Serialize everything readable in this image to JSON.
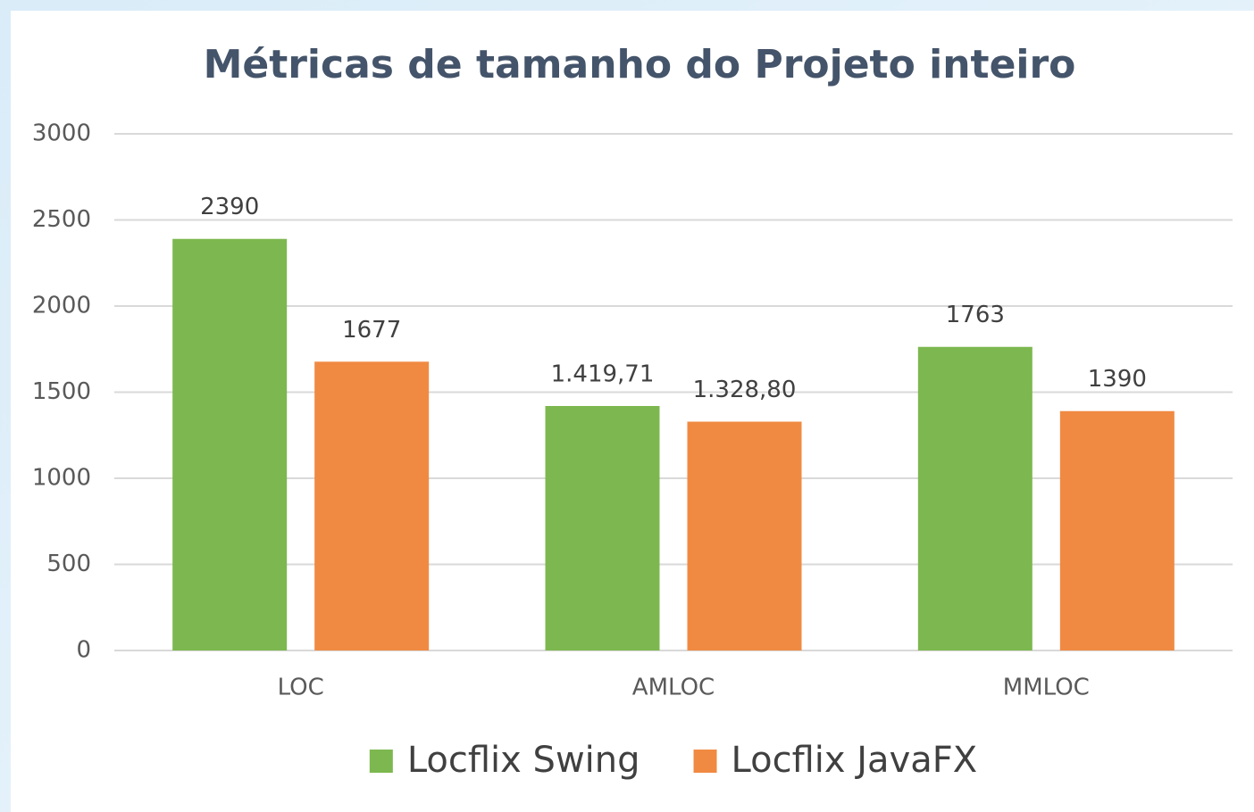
{
  "chart_data": {
    "type": "bar",
    "title": "Métricas de tamanho do Projeto inteiro",
    "categories": [
      "LOC",
      "AMLOC",
      "MMLOC"
    ],
    "series": [
      {
        "name": "Locflix Swing",
        "color": "#7cb84f",
        "values": [
          2390,
          1419.71,
          1763
        ],
        "value_labels": [
          "2390",
          "1.419,71",
          "1763"
        ]
      },
      {
        "name": "Locflix JavaFX",
        "color": "#f08a42",
        "values": [
          1677,
          1328.8,
          1390
        ],
        "value_labels": [
          "1677",
          "1.328,80",
          "1390"
        ]
      }
    ],
    "ylim": [
      0,
      3000
    ],
    "yticks": [
      0,
      500,
      1000,
      1500,
      2000,
      2500,
      3000
    ],
    "grid": true,
    "legend": "bottom"
  }
}
